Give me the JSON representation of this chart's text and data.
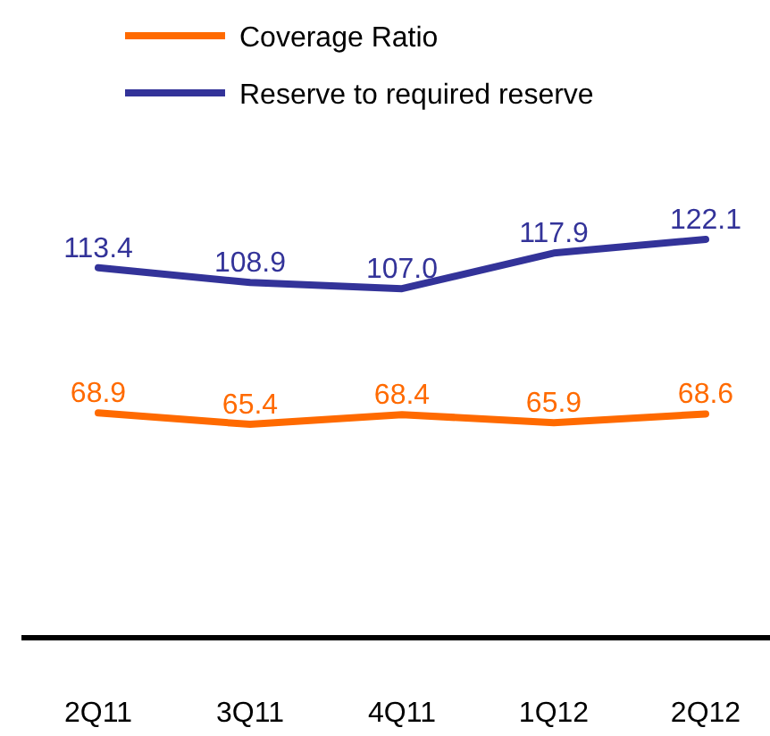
{
  "chart_data": {
    "type": "line",
    "categories": [
      "2Q11",
      "3Q11",
      "4Q11",
      "1Q12",
      "2Q12"
    ],
    "series": [
      {
        "name": "Coverage Ratio",
        "color": "#ff6a00",
        "values": [
          68.9,
          65.4,
          68.4,
          65.9,
          68.6
        ],
        "value_labels": [
          "68.9",
          "65.4",
          "68.4",
          "65.9",
          "68.6"
        ]
      },
      {
        "name": "Reserve to required reserve",
        "color": "#333399",
        "values": [
          113.4,
          108.9,
          107.0,
          117.9,
          122.1
        ],
        "value_labels": [
          "113.4",
          "108.9",
          "107.0",
          "117.9",
          "122.1"
        ]
      }
    ],
    "legend": "top left",
    "marker": "none"
  }
}
